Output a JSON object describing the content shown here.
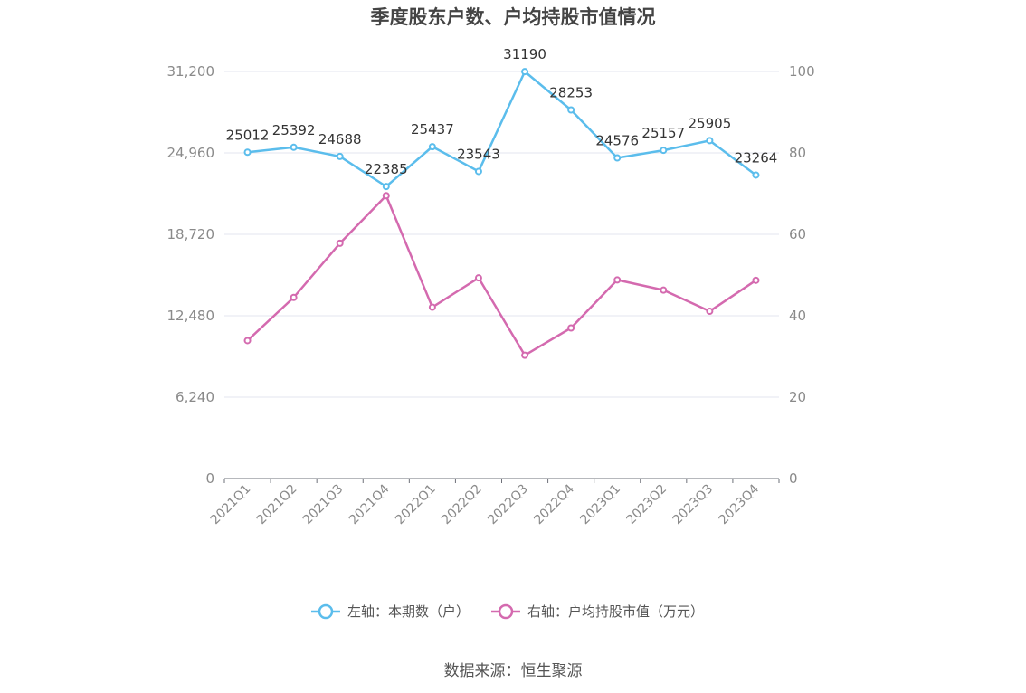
{
  "chart_data": {
    "type": "line",
    "title": "季度股东户数、户均持股市值情况",
    "categories": [
      "2021Q1",
      "2021Q2",
      "2021Q3",
      "2021Q4",
      "2022Q1",
      "2022Q2",
      "2022Q3",
      "2022Q4",
      "2023Q1",
      "2023Q2",
      "2023Q3",
      "2023Q4"
    ],
    "left_axis": {
      "min": 0,
      "max": 31200,
      "ticks": [
        "0",
        "6,240",
        "12,480",
        "18,720",
        "24,960",
        "31,200"
      ]
    },
    "right_axis": {
      "min": 0,
      "max": 100,
      "ticks": [
        "0",
        "20",
        "40",
        "60",
        "80",
        "100"
      ]
    },
    "series": [
      {
        "name": "左轴：本期数（户）",
        "axis": "left",
        "color": "#5bbdec",
        "values": [
          25012,
          25392,
          24688,
          22385,
          25437,
          23543,
          31190,
          28253,
          24576,
          25157,
          25905,
          23264
        ],
        "show_labels": true
      },
      {
        "name": "右轴：户均持股市值（万元）",
        "axis": "right",
        "color": "#d46aaf",
        "values": [
          33.9,
          44.5,
          57.8,
          69.5,
          42.1,
          49.3,
          30.3,
          37.0,
          48.8,
          46.3,
          41.1,
          48.7
        ],
        "show_labels": false
      }
    ],
    "grid": true,
    "legend_position": "bottom"
  },
  "legend": [
    {
      "label": "左轴：本期数（户）",
      "color": "#5bbdec"
    },
    {
      "label": "右轴：户均持股市值（万元）",
      "color": "#d46aaf"
    }
  ],
  "source": "数据来源：恒生聚源"
}
